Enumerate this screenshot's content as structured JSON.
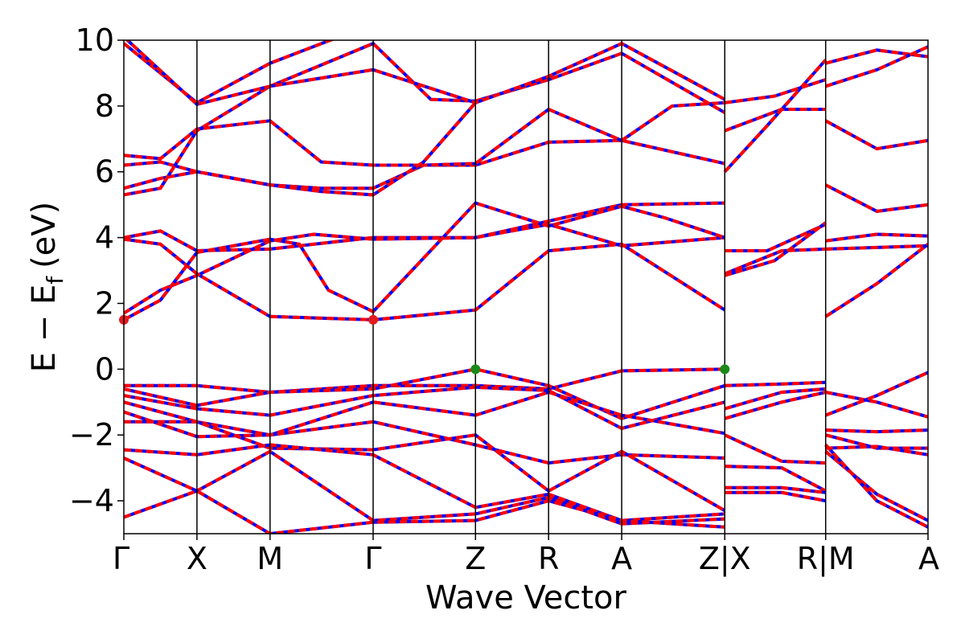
{
  "chart_data": {
    "type": "line",
    "title": "",
    "xlabel": "Wave Vector",
    "ylabel": "E − E",
    "ylabel_sub": "f",
    "ylabel_unit": "(eV)",
    "ylim": [
      -5,
      10
    ],
    "yticks": [
      -4,
      -2,
      0,
      2,
      4,
      6,
      8,
      10
    ],
    "ytick_labels": [
      "−4",
      "−2",
      "0",
      "2",
      "4",
      "6",
      "8",
      "10"
    ],
    "xlim": [
      0,
      11.0
    ],
    "kpoints": [
      {
        "label": "Γ",
        "x": 0.0
      },
      {
        "label": "X",
        "x": 1.0
      },
      {
        "label": "M",
        "x": 2.0
      },
      {
        "label": "Γ",
        "x": 3.41
      },
      {
        "label": "Z",
        "x": 4.81
      },
      {
        "label": "R",
        "x": 5.81
      },
      {
        "label": "A",
        "x": 6.81
      },
      {
        "label": "Z|X",
        "x": 8.22
      },
      {
        "label": "R|M",
        "x": 9.6
      },
      {
        "label": "A",
        "x": 11.0
      }
    ],
    "grid": false,
    "series_styles": {
      "spin_up_color": "#0000ff",
      "spin_down_color": "#ff0000"
    },
    "markers": [
      {
        "type": "CBM",
        "color": "#e41a1c",
        "points": [
          [
            0.0,
            1.5
          ],
          [
            3.41,
            1.5
          ]
        ]
      },
      {
        "type": "VBM",
        "color": "#1a8a1a",
        "points": [
          [
            4.81,
            0.0
          ],
          [
            8.22,
            0.0
          ]
        ]
      }
    ],
    "bands": [
      [
        [
          0,
          6.5
        ],
        [
          0.5,
          6.4
        ],
        [
          1.0,
          7.3
        ],
        [
          2.0,
          7.55
        ],
        [
          2.7,
          6.3
        ],
        [
          3.41,
          6.2
        ],
        [
          4.81,
          6.2
        ],
        [
          5.81,
          6.9
        ],
        [
          6.81,
          6.95
        ],
        [
          8.22,
          6.25
        ]
      ],
      [
        [
          0,
          6.2
        ],
        [
          0.5,
          6.3
        ],
        [
          1.0,
          6.0
        ],
        [
          2.0,
          5.6
        ],
        [
          2.7,
          5.5
        ],
        [
          3.41,
          5.5
        ],
        [
          4.1,
          6.2
        ],
        [
          4.81,
          6.25
        ],
        [
          5.81,
          7.9
        ],
        [
          6.81,
          6.95
        ],
        [
          7.5,
          8.0
        ],
        [
          8.22,
          8.1
        ]
      ],
      [
        [
          0,
          5.5
        ],
        [
          0.5,
          5.8
        ],
        [
          1.0,
          6.0
        ],
        [
          2.0,
          5.6
        ],
        [
          2.7,
          5.4
        ],
        [
          3.41,
          5.3
        ],
        [
          4.1,
          6.3
        ],
        [
          4.81,
          8.1
        ]
      ],
      [
        [
          0,
          5.3
        ],
        [
          0.5,
          5.5
        ],
        [
          1.0,
          7.25
        ],
        [
          2.0,
          8.6
        ],
        [
          3.41,
          9.9
        ],
        [
          4.2,
          8.2
        ],
        [
          4.81,
          8.15
        ],
        [
          5.81,
          8.8
        ],
        [
          6.81,
          9.6
        ],
        [
          8.22,
          7.8
        ]
      ],
      [
        [
          0,
          9.9
        ],
        [
          1.0,
          8.1
        ],
        [
          2.0,
          9.3
        ],
        [
          3.41,
          10.5
        ]
      ],
      [
        [
          0,
          10.1
        ],
        [
          1.0,
          8.05
        ],
        [
          2.0,
          8.6
        ],
        [
          3.41,
          9.1
        ],
        [
          4.81,
          8.1
        ],
        [
          5.81,
          8.9
        ],
        [
          6.81,
          9.9
        ],
        [
          8.22,
          8.2
        ]
      ],
      [
        [
          0,
          4.0
        ],
        [
          0.5,
          4.2
        ],
        [
          1.0,
          3.6
        ],
        [
          2.0,
          3.65
        ],
        [
          3.0,
          3.9
        ],
        [
          3.41,
          4.0
        ],
        [
          4.81,
          4.0
        ],
        [
          5.81,
          4.5
        ],
        [
          6.81,
          5.0
        ],
        [
          8.22,
          5.05
        ]
      ],
      [
        [
          0,
          3.95
        ],
        [
          0.5,
          3.8
        ],
        [
          1.0,
          2.9
        ],
        [
          2.0,
          1.6
        ],
        [
          3.41,
          1.5
        ],
        [
          4.81,
          1.8
        ],
        [
          5.81,
          3.6
        ],
        [
          6.81,
          3.8
        ],
        [
          8.22,
          1.8
        ]
      ],
      [
        [
          0,
          1.7
        ],
        [
          0.5,
          2.4
        ],
        [
          1.0,
          2.85
        ],
        [
          2.0,
          3.9
        ],
        [
          2.6,
          4.1
        ],
        [
          3.41,
          3.95
        ],
        [
          4.81,
          4.0
        ],
        [
          5.3,
          4.2
        ],
        [
          5.81,
          4.4
        ],
        [
          6.81,
          3.75
        ],
        [
          8.22,
          4.0
        ]
      ],
      [
        [
          0,
          1.5
        ],
        [
          0.5,
          2.1
        ],
        [
          1.0,
          3.55
        ],
        [
          2.0,
          3.95
        ],
        [
          2.4,
          3.8
        ],
        [
          2.8,
          2.4
        ],
        [
          3.41,
          1.75
        ],
        [
          4.81,
          5.05
        ],
        [
          5.81,
          4.35
        ],
        [
          6.81,
          4.95
        ],
        [
          7.4,
          4.6
        ],
        [
          8.22,
          4.0
        ]
      ],
      [
        [
          8.22,
          7.25
        ],
        [
          9.0,
          7.9
        ],
        [
          9.6,
          7.9
        ]
      ],
      [
        [
          8.22,
          6.0
        ],
        [
          8.8,
          7.4
        ],
        [
          9.6,
          9.4
        ]
      ],
      [
        [
          8.22,
          8.1
        ],
        [
          8.9,
          8.3
        ],
        [
          9.6,
          8.8
        ]
      ],
      [
        [
          8.22,
          3.6
        ],
        [
          8.8,
          3.6
        ],
        [
          9.6,
          4.4
        ]
      ],
      [
        [
          8.22,
          2.9
        ],
        [
          9.0,
          3.6
        ],
        [
          9.6,
          3.65
        ]
      ],
      [
        [
          8.22,
          2.85
        ],
        [
          8.9,
          3.3
        ],
        [
          9.6,
          4.45
        ]
      ],
      [
        [
          9.6,
          9.3
        ],
        [
          10.3,
          9.7
        ],
        [
          11.0,
          9.5
        ]
      ],
      [
        [
          9.6,
          8.6
        ],
        [
          10.3,
          9.1
        ],
        [
          11.0,
          9.8
        ]
      ],
      [
        [
          9.6,
          7.55
        ],
        [
          10.3,
          6.7
        ],
        [
          11.0,
          6.95
        ]
      ],
      [
        [
          9.6,
          5.6
        ],
        [
          10.3,
          4.8
        ],
        [
          11.0,
          5.0
        ]
      ],
      [
        [
          9.6,
          3.9
        ],
        [
          10.3,
          4.1
        ],
        [
          11.0,
          4.05
        ]
      ],
      [
        [
          9.6,
          3.65
        ],
        [
          10.3,
          3.7
        ],
        [
          11.0,
          3.75
        ]
      ],
      [
        [
          9.6,
          1.6
        ],
        [
          10.3,
          2.6
        ],
        [
          11.0,
          3.8
        ]
      ],
      [
        [
          0,
          -0.5
        ],
        [
          1.0,
          -0.5
        ],
        [
          2.0,
          -0.7
        ],
        [
          3.41,
          -0.5
        ],
        [
          4.81,
          -0.5
        ],
        [
          5.81,
          -0.6
        ],
        [
          6.81,
          -0.05
        ],
        [
          8.22,
          0.0
        ]
      ],
      [
        [
          0,
          -0.6
        ],
        [
          1.0,
          -1.1
        ],
        [
          2.0,
          -0.7
        ],
        [
          3.41,
          -0.6
        ],
        [
          4.81,
          0.0
        ],
        [
          5.81,
          -0.5
        ],
        [
          6.81,
          -1.5
        ],
        [
          8.22,
          -0.5
        ]
      ],
      [
        [
          0,
          -0.8
        ],
        [
          1.0,
          -1.2
        ],
        [
          2.0,
          -1.4
        ],
        [
          3.41,
          -0.8
        ],
        [
          4.81,
          -0.55
        ],
        [
          5.81,
          -0.65
        ],
        [
          6.81,
          -1.8
        ],
        [
          8.22,
          -1.0
        ]
      ],
      [
        [
          0,
          -1.0
        ],
        [
          1.0,
          -1.6
        ],
        [
          2.0,
          -2.0
        ],
        [
          3.41,
          -1.0
        ],
        [
          4.81,
          -1.4
        ],
        [
          5.81,
          -0.7
        ],
        [
          6.81,
          -1.4
        ],
        [
          8.22,
          -1.95
        ]
      ],
      [
        [
          0,
          -1.3
        ],
        [
          1.0,
          -2.05
        ],
        [
          2.0,
          -2.0
        ],
        [
          3.41,
          -1.6
        ],
        [
          4.81,
          -2.3
        ],
        [
          5.81,
          -2.85
        ],
        [
          6.81,
          -2.6
        ],
        [
          8.22,
          -2.7
        ]
      ],
      [
        [
          0,
          -1.6
        ],
        [
          1.0,
          -1.6
        ],
        [
          2.0,
          -2.4
        ],
        [
          3.41,
          -2.45
        ],
        [
          4.81,
          -2.0
        ],
        [
          5.81,
          -3.7
        ],
        [
          6.81,
          -2.5
        ],
        [
          8.22,
          -4.3
        ]
      ],
      [
        [
          0,
          -2.45
        ],
        [
          1.0,
          -2.6
        ],
        [
          2.0,
          -2.3
        ],
        [
          3.41,
          -2.6
        ],
        [
          4.81,
          -4.2
        ],
        [
          5.81,
          -3.8
        ],
        [
          6.81,
          -4.6
        ],
        [
          8.22,
          -4.4
        ]
      ],
      [
        [
          0,
          -2.7
        ],
        [
          1.0,
          -3.7
        ],
        [
          2.0,
          -2.5
        ],
        [
          3.41,
          -4.6
        ],
        [
          4.81,
          -4.4
        ],
        [
          5.81,
          -3.9
        ],
        [
          6.81,
          -4.7
        ],
        [
          8.22,
          -4.55
        ]
      ],
      [
        [
          0,
          -4.5
        ],
        [
          1.0,
          -3.7
        ],
        [
          2.0,
          -5.0
        ],
        [
          3.41,
          -4.65
        ],
        [
          4.81,
          -4.6
        ],
        [
          5.81,
          -4.0
        ],
        [
          6.81,
          -4.6
        ],
        [
          8.22,
          -4.8
        ]
      ],
      [
        [
          8.22,
          -0.5
        ],
        [
          9.0,
          -0.45
        ],
        [
          9.6,
          -0.4
        ]
      ],
      [
        [
          8.22,
          -1.2
        ],
        [
          9.0,
          -0.7
        ],
        [
          9.6,
          -0.6
        ]
      ],
      [
        [
          8.22,
          -1.5
        ],
        [
          9.0,
          -1.0
        ],
        [
          9.6,
          -0.7
        ]
      ],
      [
        [
          8.22,
          -2.0
        ],
        [
          9.0,
          -2.8
        ],
        [
          9.6,
          -2.85
        ]
      ],
      [
        [
          8.22,
          -2.95
        ],
        [
          9.0,
          -3.0
        ],
        [
          9.6,
          -3.7
        ]
      ],
      [
        [
          8.22,
          -3.6
        ],
        [
          9.0,
          -3.6
        ],
        [
          9.6,
          -3.75
        ]
      ],
      [
        [
          8.22,
          -3.75
        ],
        [
          9.0,
          -3.75
        ],
        [
          9.6,
          -4.0
        ]
      ],
      [
        [
          9.6,
          -0.7
        ],
        [
          10.3,
          -1.0
        ],
        [
          11.0,
          -1.45
        ]
      ],
      [
        [
          9.6,
          -1.4
        ],
        [
          10.3,
          -0.8
        ],
        [
          11.0,
          -0.1
        ]
      ],
      [
        [
          9.6,
          -1.85
        ],
        [
          10.3,
          -1.9
        ],
        [
          11.0,
          -1.85
        ]
      ],
      [
        [
          9.6,
          -2.0
        ],
        [
          10.3,
          -2.4
        ],
        [
          11.0,
          -2.4
        ]
      ],
      [
        [
          9.6,
          -2.4
        ],
        [
          10.3,
          -2.35
        ],
        [
          11.0,
          -2.6
        ]
      ],
      [
        [
          9.6,
          -2.5
        ],
        [
          10.3,
          -3.8
        ],
        [
          11.0,
          -4.6
        ]
      ],
      [
        [
          9.6,
          -2.3
        ],
        [
          10.3,
          -4.0
        ],
        [
          11.0,
          -4.8
        ]
      ]
    ]
  }
}
